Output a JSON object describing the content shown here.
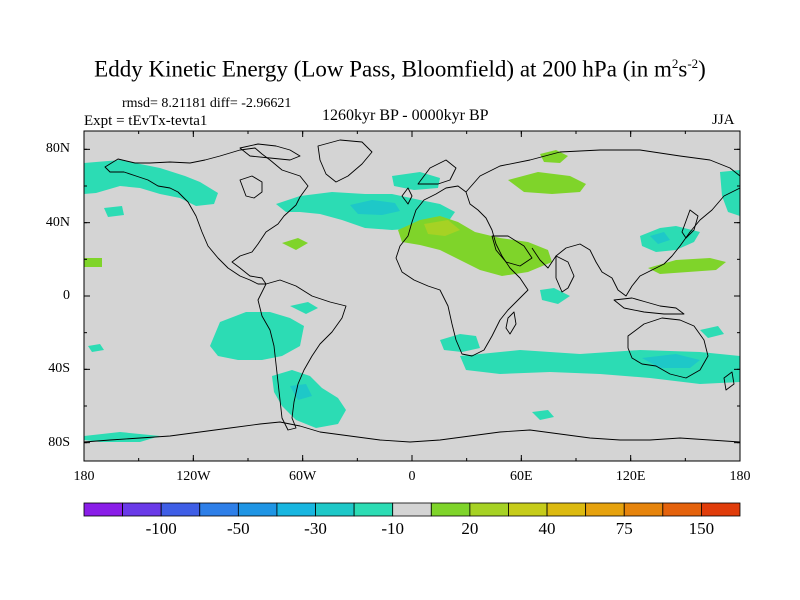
{
  "header": {
    "title_main": "Eddy Kinetic Energy (Low Pass, Bloomfield) at 200 hPa (in m",
    "title_sup1": "2",
    "title_mid": "s",
    "title_sup2": "-2",
    "title_end": ")",
    "stats": "rmsd= 8.21181 diff= -2.96621",
    "experiment": "Expt = tEvTx-tevta1",
    "period": "1260kyr BP - 0000kyr BP",
    "season": "JJA"
  },
  "map": {
    "projection": "cylindrical equidistant",
    "lon_range": [
      -180,
      180
    ],
    "lat_range": [
      -90,
      90
    ],
    "lon_labels": [
      "180",
      "120W",
      "60W",
      "0",
      "60E",
      "120E",
      "180"
    ],
    "lat_labels": [
      "80N",
      "40N",
      "0",
      "40S",
      "80S"
    ],
    "background_color": "#d4d4d4",
    "coastline_color": "#000000",
    "regions": [
      {
        "name": "north-pacific-cyan-east",
        "class": "-30 to -10"
      },
      {
        "name": "north-pacific-cyan-west",
        "class": "-30 to -10"
      },
      {
        "name": "north-atlantic-cyan",
        "class": "-30 to -10"
      },
      {
        "name": "north-atlantic-blue-core",
        "class": "-50 to -30"
      },
      {
        "name": "mediterranean-green",
        "class": "10 to 30"
      },
      {
        "name": "siberia-green",
        "class": "10 to 30"
      },
      {
        "name": "east-asia-green",
        "class": "10 to 30"
      },
      {
        "name": "east-asia-cyan",
        "class": "-30 to -10"
      },
      {
        "name": "south-pacific-cyan",
        "class": "-30 to -10"
      },
      {
        "name": "south-america-cyan",
        "class": "-30 to -10"
      },
      {
        "name": "south-indian-ocean-cyan",
        "class": "-30 to -10"
      },
      {
        "name": "australia-blue-core",
        "class": "-50 to -30"
      }
    ]
  },
  "colorbar": {
    "labels": [
      "-100",
      "-50",
      "-30",
      "-10",
      "20",
      "40",
      "75",
      "150"
    ],
    "colors": [
      "#8a1ee8",
      "#6a3ae8",
      "#3f5ee6",
      "#2e7fe8",
      "#1f95e4",
      "#18b6e0",
      "#1ec8c8",
      "#2cdcb4",
      "#d4d4d4",
      "#7fd42a",
      "#a6d224",
      "#c6cc1a",
      "#dcba10",
      "#e6a20e",
      "#e6840c",
      "#e4620c",
      "#e03c0a"
    ]
  }
}
